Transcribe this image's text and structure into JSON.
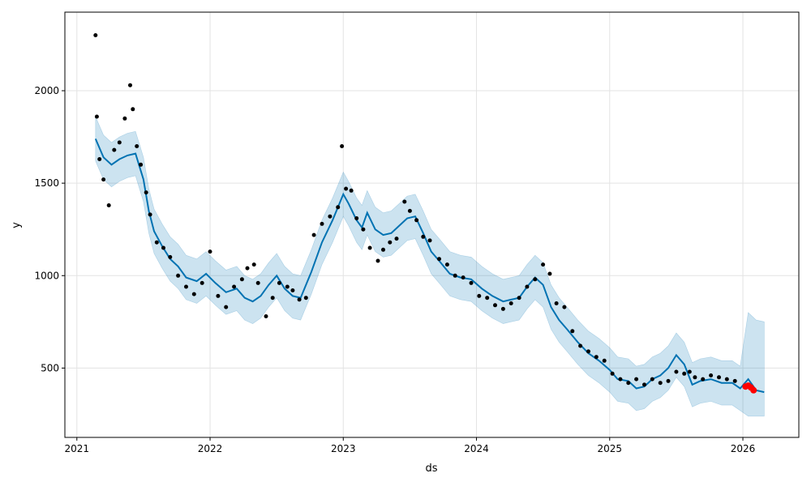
{
  "chart_data": {
    "type": "line",
    "title": "",
    "xlabel": "ds",
    "ylabel": "y",
    "xlim": [
      2020.91,
      2026.42
    ],
    "ylim": [
      125,
      2425
    ],
    "x_ticks": [
      2021,
      2022,
      2023,
      2024,
      2025,
      2026
    ],
    "x_tick_labels": [
      "2021",
      "2022",
      "2023",
      "2024",
      "2025",
      "2026"
    ],
    "y_ticks": [
      500,
      1000,
      1500,
      2000
    ],
    "y_tick_labels": [
      "500",
      "1000",
      "1500",
      "2000"
    ],
    "grid": true,
    "colors": {
      "observed": "#000000",
      "forecast_line": "#0072B2",
      "interval_fill": "#0072B2",
      "highlight": "#ff0000"
    },
    "series": [
      {
        "role": "observed",
        "x": [
          2021.14,
          2021.15,
          2021.17,
          2021.2,
          2021.24,
          2021.28,
          2021.32,
          2021.36,
          2021.4,
          2021.42,
          2021.45,
          2021.48,
          2021.52,
          2021.55,
          2021.6,
          2021.65,
          2021.7,
          2021.76,
          2021.82,
          2021.88,
          2021.94,
          2022.0,
          2022.06,
          2022.12,
          2022.18,
          2022.24,
          2022.28,
          2022.33,
          2022.36,
          2022.42,
          2022.47,
          2022.52,
          2022.58,
          2022.62,
          2022.67,
          2022.72,
          2022.78,
          2022.84,
          2022.9,
          2022.96,
          2022.99,
          2023.02,
          2023.06,
          2023.1,
          2023.15,
          2023.2,
          2023.26,
          2023.3,
          2023.35,
          2023.4,
          2023.46,
          2023.5,
          2023.55,
          2023.6,
          2023.65,
          2023.72,
          2023.78,
          2023.84,
          2023.9,
          2023.96,
          2024.02,
          2024.08,
          2024.14,
          2024.2,
          2024.26,
          2024.32,
          2024.38,
          2024.44,
          2024.5,
          2024.55,
          2024.6,
          2024.66,
          2024.72,
          2024.78,
          2024.84,
          2024.9,
          2024.96,
          2025.02,
          2025.08,
          2025.14,
          2025.2,
          2025.26,
          2025.32,
          2025.38,
          2025.44,
          2025.5,
          2025.56,
          2025.6,
          2025.64,
          2025.7,
          2025.76,
          2025.82,
          2025.88,
          2025.94
        ],
        "y": [
          2300,
          1860,
          1630,
          1520,
          1380,
          1680,
          1720,
          1850,
          2030,
          1900,
          1700,
          1600,
          1450,
          1330,
          1180,
          1150,
          1100,
          1000,
          940,
          900,
          960,
          1130,
          890,
          830,
          940,
          980,
          1040,
          1060,
          960,
          780,
          880,
          960,
          940,
          920,
          870,
          880,
          1220,
          1280,
          1320,
          1370,
          1700,
          1470,
          1460,
          1310,
          1250,
          1150,
          1080,
          1140,
          1180,
          1200,
          1400,
          1350,
          1300,
          1210,
          1190,
          1090,
          1060,
          1000,
          990,
          960,
          890,
          880,
          840,
          820,
          850,
          880,
          940,
          980,
          1060,
          1010,
          850,
          830,
          700,
          620,
          590,
          560,
          540,
          470,
          440,
          420,
          440,
          410,
          440,
          420,
          430,
          480,
          470,
          480,
          450,
          440,
          460,
          450,
          440,
          430
        ]
      },
      {
        "role": "highlight",
        "x": [
          2026.02,
          2026.04,
          2026.06,
          2026.08
        ],
        "y": [
          400,
          405,
          395,
          380
        ]
      },
      {
        "role": "forecast",
        "x": [
          2021.14,
          2021.2,
          2021.26,
          2021.32,
          2021.38,
          2021.44,
          2021.5,
          2021.54,
          2021.58,
          2021.64,
          2021.7,
          2021.76,
          2021.82,
          2021.9,
          2021.97,
          2022.04,
          2022.12,
          2022.2,
          2022.26,
          2022.32,
          2022.38,
          2022.44,
          2022.5,
          2022.56,
          2022.62,
          2022.68,
          2022.76,
          2022.84,
          2022.92,
          2023.0,
          2023.04,
          2023.1,
          2023.14,
          2023.18,
          2023.24,
          2023.3,
          2023.36,
          2023.42,
          2023.48,
          2023.54,
          2023.6,
          2023.66,
          2023.72,
          2023.8,
          2023.88,
          2023.96,
          2024.04,
          2024.12,
          2024.2,
          2024.26,
          2024.32,
          2024.38,
          2024.44,
          2024.5,
          2024.56,
          2024.62,
          2024.68,
          2024.76,
          2024.84,
          2024.92,
          2025.0,
          2025.06,
          2025.14,
          2025.2,
          2025.26,
          2025.32,
          2025.38,
          2025.44,
          2025.5,
          2025.56,
          2025.62,
          2025.68,
          2025.76,
          2025.84,
          2025.92,
          2025.98,
          2026.04,
          2026.1,
          2026.16
        ],
        "y": [
          1740,
          1640,
          1600,
          1630,
          1650,
          1660,
          1520,
          1350,
          1240,
          1160,
          1090,
          1050,
          990,
          970,
          1010,
          960,
          910,
          930,
          880,
          860,
          890,
          950,
          1000,
          930,
          890,
          880,
          1020,
          1180,
          1300,
          1440,
          1390,
          1300,
          1260,
          1340,
          1250,
          1220,
          1230,
          1270,
          1310,
          1320,
          1230,
          1130,
          1080,
          1010,
          990,
          980,
          930,
          890,
          860,
          870,
          880,
          940,
          990,
          950,
          830,
          760,
          710,
          640,
          580,
          540,
          490,
          440,
          430,
          390,
          400,
          440,
          460,
          500,
          570,
          520,
          410,
          430,
          440,
          420,
          420,
          390,
          440,
          380,
          370
        ]
      },
      {
        "role": "upper_bound",
        "x": [
          2021.14,
          2021.2,
          2021.26,
          2021.32,
          2021.38,
          2021.44,
          2021.5,
          2021.54,
          2021.58,
          2021.64,
          2021.7,
          2021.76,
          2021.82,
          2021.9,
          2021.97,
          2022.04,
          2022.12,
          2022.2,
          2022.26,
          2022.32,
          2022.38,
          2022.44,
          2022.5,
          2022.56,
          2022.62,
          2022.68,
          2022.76,
          2022.84,
          2022.92,
          2023.0,
          2023.04,
          2023.1,
          2023.14,
          2023.18,
          2023.24,
          2023.3,
          2023.36,
          2023.42,
          2023.48,
          2023.54,
          2023.6,
          2023.66,
          2023.72,
          2023.8,
          2023.88,
          2023.96,
          2024.04,
          2024.12,
          2024.2,
          2024.26,
          2024.32,
          2024.38,
          2024.44,
          2024.5,
          2024.56,
          2024.62,
          2024.68,
          2024.76,
          2024.84,
          2024.92,
          2025.0,
          2025.06,
          2025.14,
          2025.2,
          2025.26,
          2025.32,
          2025.38,
          2025.44,
          2025.5,
          2025.56,
          2025.62,
          2025.68,
          2025.76,
          2025.84,
          2025.92,
          2025.98,
          2026.04,
          2026.1,
          2026.16
        ],
        "y": [
          1860,
          1760,
          1720,
          1750,
          1770,
          1780,
          1640,
          1470,
          1360,
          1280,
          1210,
          1170,
          1110,
          1090,
          1130,
          1080,
          1030,
          1050,
          1000,
          980,
          1010,
          1070,
          1120,
          1050,
          1010,
          1000,
          1140,
          1300,
          1420,
          1560,
          1510,
          1420,
          1380,
          1460,
          1370,
          1340,
          1350,
          1390,
          1430,
          1440,
          1350,
          1250,
          1200,
          1130,
          1110,
          1100,
          1050,
          1010,
          980,
          990,
          1000,
          1060,
          1110,
          1070,
          950,
          880,
          830,
          760,
          700,
          660,
          610,
          560,
          550,
          510,
          520,
          560,
          580,
          620,
          690,
          640,
          530,
          550,
          560,
          540,
          540,
          510,
          800,
          760,
          750
        ]
      },
      {
        "role": "lower_bound",
        "x": [
          2021.14,
          2021.2,
          2021.26,
          2021.32,
          2021.38,
          2021.44,
          2021.5,
          2021.54,
          2021.58,
          2021.64,
          2021.7,
          2021.76,
          2021.82,
          2021.9,
          2021.97,
          2022.04,
          2022.12,
          2022.2,
          2022.26,
          2022.32,
          2022.38,
          2022.44,
          2022.5,
          2022.56,
          2022.62,
          2022.68,
          2022.76,
          2022.84,
          2022.92,
          2023.0,
          2023.04,
          2023.1,
          2023.14,
          2023.18,
          2023.24,
          2023.3,
          2023.36,
          2023.42,
          2023.48,
          2023.54,
          2023.6,
          2023.66,
          2023.72,
          2023.8,
          2023.88,
          2023.96,
          2024.04,
          2024.12,
          2024.2,
          2024.26,
          2024.32,
          2024.38,
          2024.44,
          2024.5,
          2024.56,
          2024.62,
          2024.68,
          2024.76,
          2024.84,
          2024.92,
          2025.0,
          2025.06,
          2025.14,
          2025.2,
          2025.26,
          2025.32,
          2025.38,
          2025.44,
          2025.5,
          2025.56,
          2025.62,
          2025.68,
          2025.76,
          2025.84,
          2025.92,
          2025.98,
          2026.04,
          2026.1,
          2026.16
        ],
        "y": [
          1620,
          1520,
          1480,
          1510,
          1530,
          1540,
          1400,
          1230,
          1120,
          1040,
          970,
          930,
          870,
          850,
          890,
          840,
          790,
          810,
          760,
          740,
          770,
          830,
          880,
          810,
          770,
          760,
          900,
          1060,
          1180,
          1320,
          1270,
          1180,
          1140,
          1220,
          1130,
          1100,
          1110,
          1150,
          1190,
          1200,
          1110,
          1010,
          960,
          890,
          870,
          860,
          810,
          770,
          740,
          750,
          760,
          820,
          870,
          830,
          710,
          640,
          590,
          520,
          460,
          420,
          370,
          320,
          310,
          270,
          280,
          320,
          340,
          380,
          450,
          400,
          290,
          310,
          320,
          300,
          300,
          270,
          240,
          240,
          240
        ]
      }
    ]
  }
}
